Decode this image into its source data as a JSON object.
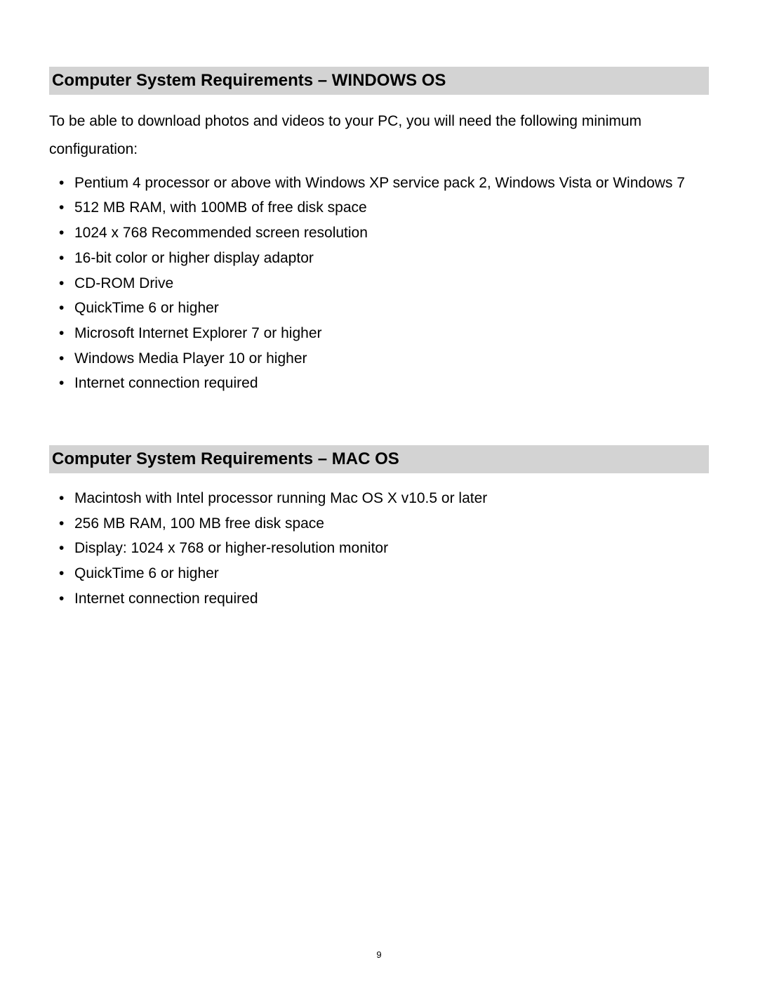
{
  "page": {
    "number": "9",
    "background_color": "#ffffff",
    "text_color": "#000000",
    "heading_bg_color": "#d3d3d3",
    "font_family": "Arial",
    "heading_fontsize": 24,
    "body_fontsize": 21,
    "page_number_fontsize": 13
  },
  "sections": [
    {
      "heading": "Computer System Requirements – WINDOWS OS",
      "intro": "To be able to download photos and videos to your PC, you will need the following minimum configuration:",
      "items": [
        "Pentium 4 processor or above with Windows XP service pack 2, Windows Vista or Windows 7",
        "512 MB RAM, with 100MB of free disk space",
        "1024 x 768 Recommended screen resolution",
        "16-bit color or higher display adaptor",
        "CD-ROM Drive",
        "QuickTime 6 or higher",
        "Microsoft Internet Explorer 7 or higher",
        "Windows Media Player 10 or higher",
        "Internet connection required"
      ]
    },
    {
      "heading": "Computer System Requirements – MAC OS",
      "intro": "",
      "items": [
        "Macintosh with Intel processor running Mac OS X v10.5 or later",
        "256 MB RAM, 100 MB free disk space",
        "Display: 1024 x 768 or higher-resolution monitor",
        "QuickTime 6 or higher",
        "Internet connection required"
      ]
    }
  ]
}
